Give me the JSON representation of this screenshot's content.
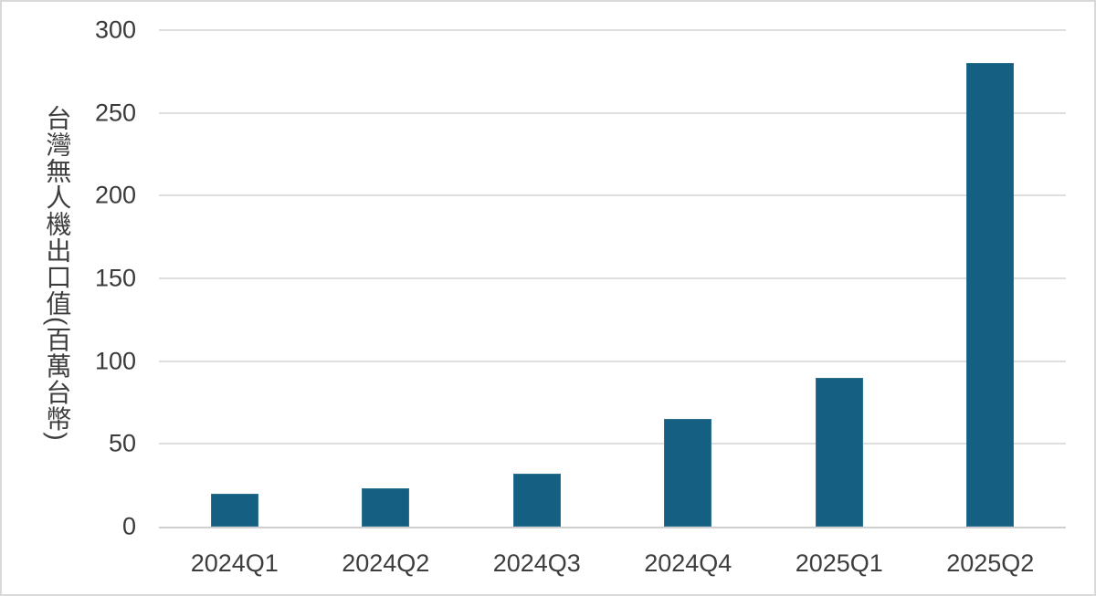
{
  "chart_data": {
    "type": "bar",
    "title": "",
    "categories": [
      "2024Q1",
      "2024Q2",
      "2024Q3",
      "2024Q4",
      "2025Q1",
      "2025Q2"
    ],
    "values": [
      20,
      23,
      32,
      65,
      90,
      280
    ],
    "xlabel": "",
    "ylabel": "台灣無人機出口值(百萬台幣)",
    "ylim": [
      0,
      300
    ],
    "yticks": [
      0,
      50,
      100,
      150,
      200,
      250,
      300
    ],
    "grid": true,
    "legend_position": "none",
    "colors": {
      "bar_fill": "#155f82",
      "bar_border": "#2e7190",
      "gridline": "#dedede",
      "axis_line": "#cfcfcf",
      "text": "#3d3d3d",
      "background": "#ffffff",
      "chart_border": "#d9d9d9"
    }
  }
}
